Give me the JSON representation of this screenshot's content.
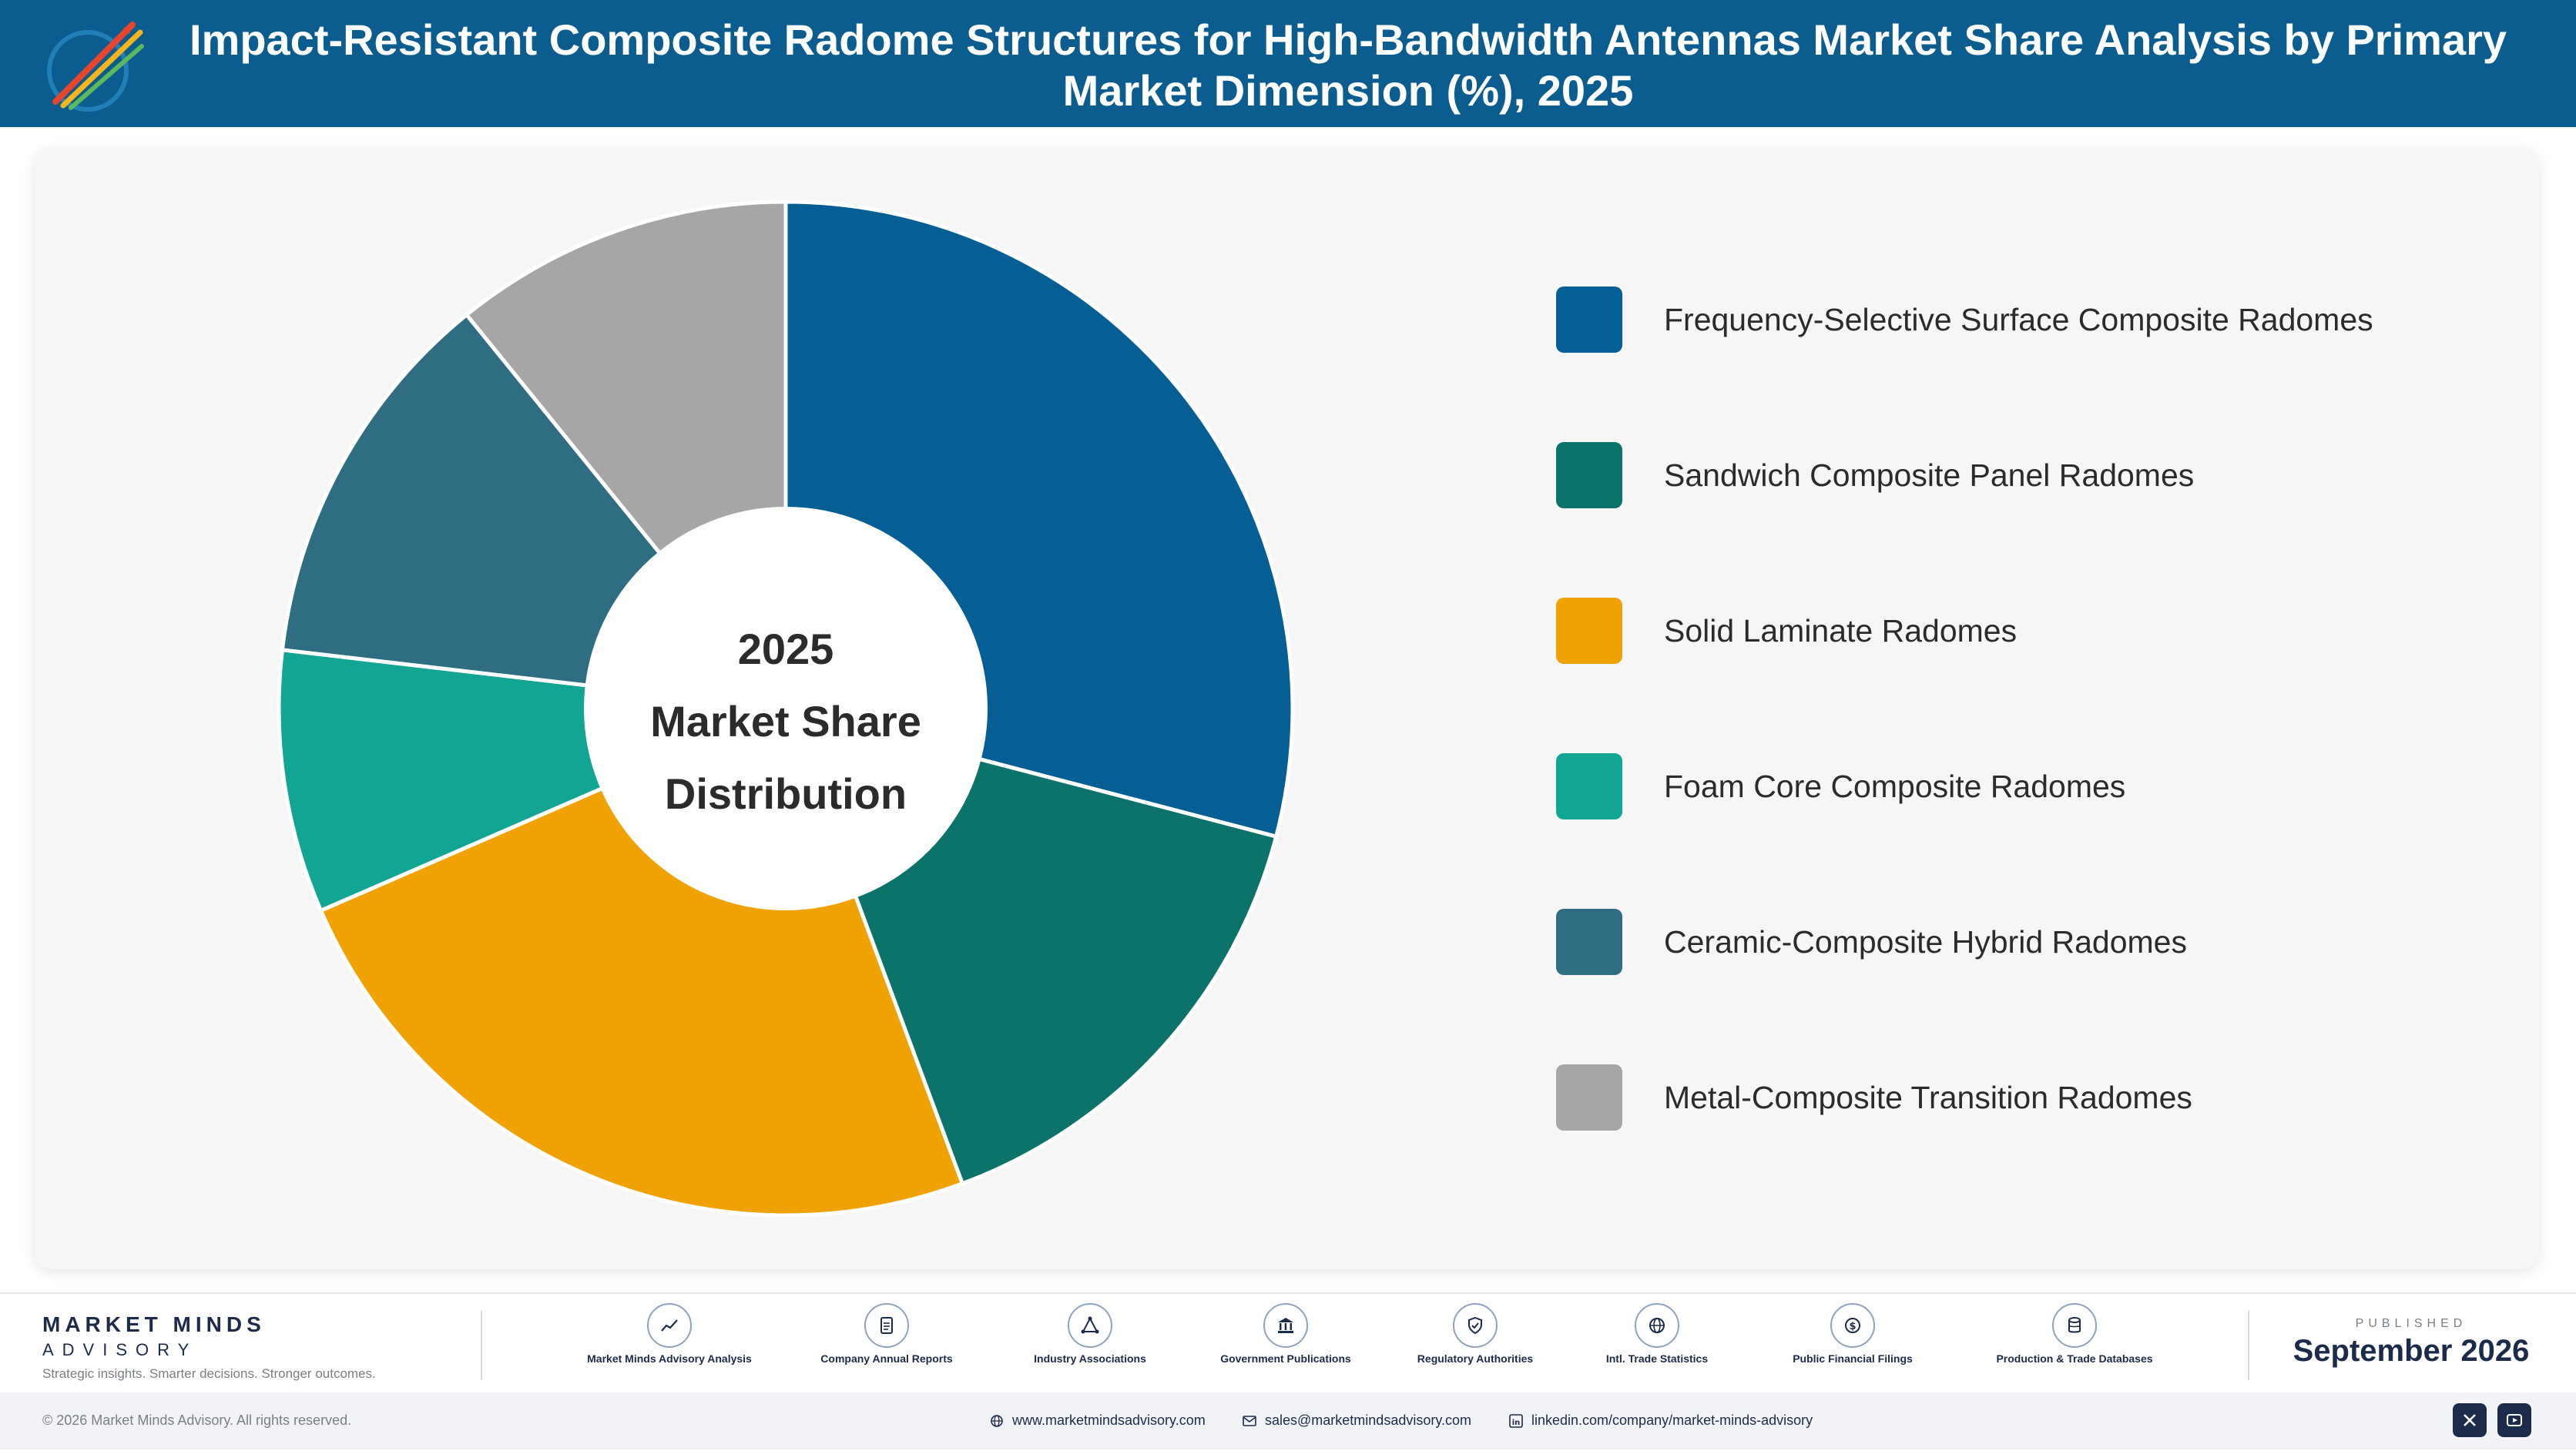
{
  "header": {
    "title": "Impact-Resistant Composite Radome Structures for High-Bandwidth Antennas Market Share Analysis by Primary Market Dimension (%), 2025"
  },
  "chart_data": {
    "type": "pie",
    "variant": "donut",
    "title": "Impact-Resistant Composite Radome Structures for High-Bandwidth Antennas Market Share Analysis by Primary Market Dimension (%), 2025",
    "center_label": [
      "2025",
      "Market Share",
      "Distribution"
    ],
    "categories": [
      "Frequency-Selective Surface Composite Radomes",
      "Sandwich Composite Panel Radomes",
      "Solid Laminate Radomes",
      "Foam Core Composite Radomes",
      "Ceramic-Composite Hybrid Radomes",
      "Metal-Composite Transition Radomes"
    ],
    "values": [
      29.5,
      15.5,
      24.5,
      8.5,
      12.5,
      11.0
    ],
    "colors": [
      "#065f94",
      "#0b736a",
      "#f0a202",
      "#12a594",
      "#2f6e82",
      "#a6a6a6"
    ],
    "legend_position": "right",
    "start_angle_deg": 0,
    "direction": "clockwise"
  },
  "footer": {
    "brand_name": "MARKET MINDS",
    "brand_sub": "ADVISORY",
    "brand_tagline": "Strategic insights. Smarter decisions. Stronger outcomes.",
    "sources": [
      {
        "label": "Market Minds Advisory Analysis",
        "icon": "trend-chart-icon"
      },
      {
        "label": "Company Annual Reports",
        "icon": "document-icon"
      },
      {
        "label": "Industry Associations",
        "icon": "network-icon"
      },
      {
        "label": "Government Publications",
        "icon": "government-building-icon"
      },
      {
        "label": "Regulatory Authorities",
        "icon": "shield-check-icon"
      },
      {
        "label": "Intl. Trade Statistics",
        "icon": "globe-icon"
      },
      {
        "label": "Public Financial Filings",
        "icon": "dollar-coin-icon"
      },
      {
        "label": "Production & Trade Databases",
        "icon": "database-icon"
      }
    ],
    "published_label": "PUBLISHED",
    "published_date": "September 2026",
    "copyright": "© 2026 Market Minds Advisory. All rights reserved.",
    "website": "www.marketmindsadvisory.com",
    "email": "sales@marketmindsadvisory.com",
    "linkedin": "linkedin.com/company/market-minds-advisory"
  }
}
